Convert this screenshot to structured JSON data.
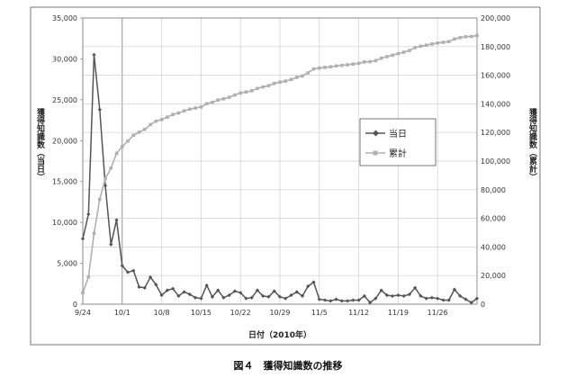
{
  "caption": "図４　獲得知識数の推移",
  "chart_data": {
    "type": "line",
    "xlabel": "日付（2010年）",
    "ylabel_left": "獲得知識数（当日）",
    "ylabel_right": "獲得知識数（累計）",
    "ylim_left": [
      0,
      35000
    ],
    "ylim_right": [
      0,
      200000
    ],
    "yticks_left": [
      "0",
      "5,000",
      "10,000",
      "15,000",
      "20,000",
      "25,000",
      "30,000",
      "35,000"
    ],
    "yticks_right": [
      "0",
      "20,000",
      "40,000",
      "60,000",
      "80,000",
      "100,000",
      "120,000",
      "140,000",
      "160,000",
      "180,000",
      "200,000"
    ],
    "x_start": "2010-09-24",
    "x_end": "2010-12-03",
    "xticks": [
      "9/24",
      "10/1",
      "10/8",
      "10/15",
      "10/22",
      "10/29",
      "11/5",
      "11/12",
      "11/19",
      "11/26"
    ],
    "xtick_dates": [
      "2010-09-24",
      "2010-10-01",
      "2010-10-08",
      "2010-10-15",
      "2010-10-22",
      "2010-10-29",
      "2010-11-05",
      "2010-11-12",
      "2010-11-19",
      "2010-11-26"
    ],
    "legend_position": "right-middle",
    "grid": true,
    "series": [
      {
        "name": "当日",
        "axis": "left",
        "color": "#555555",
        "marker": "diamond",
        "x": [
          "2010-09-24",
          "2010-09-25",
          "2010-09-26",
          "2010-09-27",
          "2010-09-28",
          "2010-09-29",
          "2010-09-30",
          "2010-10-01",
          "2010-10-02",
          "2010-10-03",
          "2010-10-04",
          "2010-10-05",
          "2010-10-06",
          "2010-10-07",
          "2010-10-08",
          "2010-10-09",
          "2010-10-10",
          "2010-10-11",
          "2010-10-12",
          "2010-10-13",
          "2010-10-14",
          "2010-10-15",
          "2010-10-16",
          "2010-10-17",
          "2010-10-18",
          "2010-10-19",
          "2010-10-20",
          "2010-10-21",
          "2010-10-22",
          "2010-10-23",
          "2010-10-24",
          "2010-10-25",
          "2010-10-26",
          "2010-10-27",
          "2010-10-28",
          "2010-10-29",
          "2010-10-30",
          "2010-10-31",
          "2010-11-01",
          "2010-11-02",
          "2010-11-03",
          "2010-11-04",
          "2010-11-05",
          "2010-11-06",
          "2010-11-07",
          "2010-11-08",
          "2010-11-09",
          "2010-11-10",
          "2010-11-11",
          "2010-11-12",
          "2010-11-13",
          "2010-11-14",
          "2010-11-15",
          "2010-11-16",
          "2010-11-17",
          "2010-11-18",
          "2010-11-19",
          "2010-11-20",
          "2010-11-21",
          "2010-11-22",
          "2010-11-23",
          "2010-11-24",
          "2010-11-25",
          "2010-11-26",
          "2010-11-27",
          "2010-11-28",
          "2010-11-29",
          "2010-11-30",
          "2010-12-01",
          "2010-12-02",
          "2010-12-03"
        ],
        "values": [
          8000,
          11000,
          30500,
          23800,
          14500,
          7300,
          10300,
          4700,
          3900,
          4100,
          2100,
          2000,
          3300,
          2400,
          1100,
          1700,
          1900,
          1000,
          1500,
          1200,
          800,
          700,
          2300,
          900,
          1700,
          800,
          1100,
          1600,
          1400,
          700,
          800,
          1700,
          1000,
          900,
          1600,
          900,
          700,
          1100,
          1500,
          1000,
          2200,
          2700,
          600,
          500,
          400,
          600,
          400,
          400,
          500,
          500,
          1000,
          200,
          700,
          1700,
          1100,
          1000,
          1100,
          1000,
          1200,
          2000,
          1000,
          700,
          800,
          700,
          500,
          500,
          1800,
          1000,
          600,
          200,
          700
        ]
      },
      {
        "name": "累計",
        "axis": "right",
        "color": "#b0b0b0",
        "marker": "square",
        "x": [
          "2010-09-24",
          "2010-09-25",
          "2010-09-26",
          "2010-09-27",
          "2010-09-28",
          "2010-09-29",
          "2010-09-30",
          "2010-10-01",
          "2010-10-02",
          "2010-10-03",
          "2010-10-04",
          "2010-10-05",
          "2010-10-06",
          "2010-10-07",
          "2010-10-08",
          "2010-10-09",
          "2010-10-10",
          "2010-10-11",
          "2010-10-12",
          "2010-10-13",
          "2010-10-14",
          "2010-10-15",
          "2010-10-16",
          "2010-10-17",
          "2010-10-18",
          "2010-10-19",
          "2010-10-20",
          "2010-10-21",
          "2010-10-22",
          "2010-10-23",
          "2010-10-24",
          "2010-10-25",
          "2010-10-26",
          "2010-10-27",
          "2010-10-28",
          "2010-10-29",
          "2010-10-30",
          "2010-10-31",
          "2010-11-01",
          "2010-11-02",
          "2010-11-03",
          "2010-11-04",
          "2010-11-05",
          "2010-11-06",
          "2010-11-07",
          "2010-11-08",
          "2010-11-09",
          "2010-11-10",
          "2010-11-11",
          "2010-11-12",
          "2010-11-13",
          "2010-11-14",
          "2010-11-15",
          "2010-11-16",
          "2010-11-17",
          "2010-11-18",
          "2010-11-19",
          "2010-11-20",
          "2010-11-21",
          "2010-11-22",
          "2010-11-23",
          "2010-11-24",
          "2010-11-25",
          "2010-11-26",
          "2010-11-27",
          "2010-11-28",
          "2010-11-29",
          "2010-11-30",
          "2010-12-01",
          "2010-12-02",
          "2010-12-03"
        ],
        "values": [
          8000,
          19000,
          49500,
          73300,
          87800,
          95100,
          105400,
          110100,
          114000,
          118100,
          120200,
          122200,
          125500,
          127900,
          129000,
          130700,
          132600,
          133600,
          135100,
          136300,
          137100,
          137800,
          140100,
          141000,
          142700,
          143500,
          144600,
          146200,
          147600,
          148300,
          149100,
          150800,
          151800,
          152700,
          154300,
          155200,
          155900,
          157000,
          158500,
          159500,
          161700,
          164400,
          165000,
          165500,
          165900,
          166500,
          166900,
          167300,
          167800,
          168300,
          169300,
          169500,
          170200,
          171900,
          173000,
          174000,
          175100,
          176100,
          177300,
          179300,
          180300,
          181000,
          181800,
          182500,
          183000,
          183500,
          185300,
          186300,
          186900,
          187100,
          187800
        ]
      }
    ]
  }
}
